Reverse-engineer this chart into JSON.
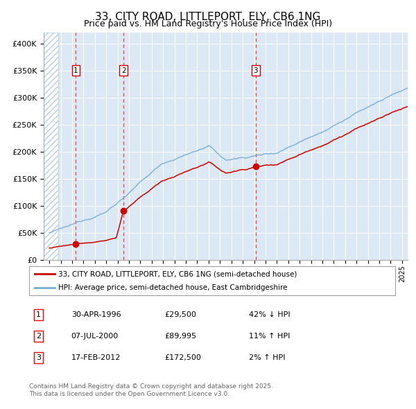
{
  "title": "33, CITY ROAD, LITTLEPORT, ELY, CB6 1NG",
  "subtitle": "Price paid vs. HM Land Registry's House Price Index (HPI)",
  "title_fontsize": 11,
  "subtitle_fontsize": 9,
  "bg_color": "#dce9f5",
  "hatch_color": "#b8cfe0",
  "red_line_color": "#cc0000",
  "blue_line_color": "#7aadd4",
  "x_start_year": 1994,
  "x_end_year": 2025,
  "y_max": 420000,
  "y_ticks": [
    0,
    50000,
    100000,
    150000,
    200000,
    250000,
    300000,
    350000,
    400000
  ],
  "y_tick_labels": [
    "£0",
    "£50K",
    "£100K",
    "£150K",
    "£200K",
    "£250K",
    "£300K",
    "£350K",
    "£400K"
  ],
  "sale_dates_decimal": [
    1996.33,
    2000.52,
    2012.13
  ],
  "sale_prices": [
    29500,
    89995,
    172500
  ],
  "sale_labels": [
    "1",
    "2",
    "3"
  ],
  "legend_line1": "33, CITY ROAD, LITTLEPORT, ELY, CB6 1NG (semi-detached house)",
  "legend_line2": "HPI: Average price, semi-detached house, East Cambridgeshire",
  "table_data": [
    [
      "1",
      "30-APR-1996",
      "£29,500",
      "42% ↓ HPI"
    ],
    [
      "2",
      "07-JUL-2000",
      "£89,995",
      "11% ↑ HPI"
    ],
    [
      "3",
      "17-FEB-2012",
      "£172,500",
      "2% ↑ HPI"
    ]
  ],
  "footer": "Contains HM Land Registry data © Crown copyright and database right 2025.\nThis data is licensed under the Open Government Licence v3.0."
}
